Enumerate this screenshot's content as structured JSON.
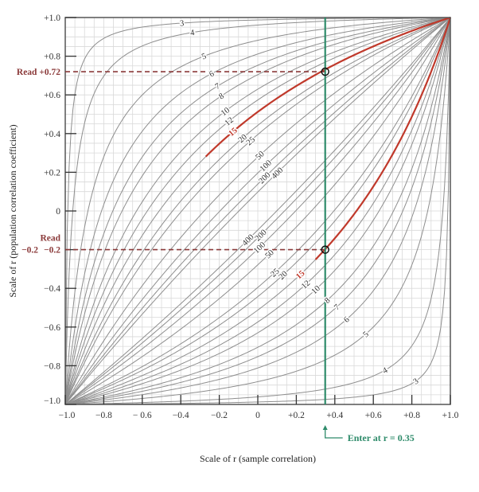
{
  "chart_data": {
    "type": "line",
    "title": "",
    "xlabel": "Scale of r (sample correlation)",
    "ylabel": "Scale of r (population correlation coefficient)",
    "xlim": [
      -1.0,
      1.0
    ],
    "ylim": [
      -1.0,
      1.0
    ],
    "grid": true,
    "x_ticks": [
      "−1.0",
      "−0.8",
      "− 0.6",
      "−0.4",
      "−0.2",
      "0",
      "+0.2",
      "+0.4",
      "+0.6",
      "+0.8",
      "+1.0"
    ],
    "y_ticks": [
      "+1.0",
      "+0.8",
      "+0.6",
      "+0.4",
      "+0.2",
      "0",
      "−0.2",
      "−0.4",
      "−0.6",
      "−0.8",
      "−1.0"
    ],
    "sample_sizes": [
      3,
      4,
      5,
      6,
      7,
      8,
      10,
      12,
      15,
      20,
      25,
      50,
      100,
      200,
      400
    ],
    "highlighted_sample_size": 15,
    "series_upper_labels": [
      "3",
      "4",
      "5",
      "6",
      "7",
      "8",
      "10",
      "12",
      "15",
      "20",
      "25",
      "50",
      "100",
      "200",
      "400"
    ],
    "series_lower_labels": [
      "400",
      "200",
      "100",
      "50",
      "25",
      "20",
      "15",
      "12",
      "10",
      "8",
      "7",
      "6",
      "5",
      "4",
      "3"
    ],
    "enter_value": 0.35,
    "read_upper": 0.72,
    "read_lower": -0.2,
    "annotations": {
      "read_upper_label": "Read +0.72",
      "read_lower_label_line1": "Read",
      "read_lower_label_line2": "−0.2",
      "enter_label": "Enter at r = 0.35"
    },
    "colors": {
      "curve": "#8e8e8e",
      "highlight": "#c0392b",
      "enter_line": "#2e8b6a",
      "read_line": "#8b3a3a",
      "grid": "#d9d9d9",
      "frame": "#555555"
    }
  }
}
